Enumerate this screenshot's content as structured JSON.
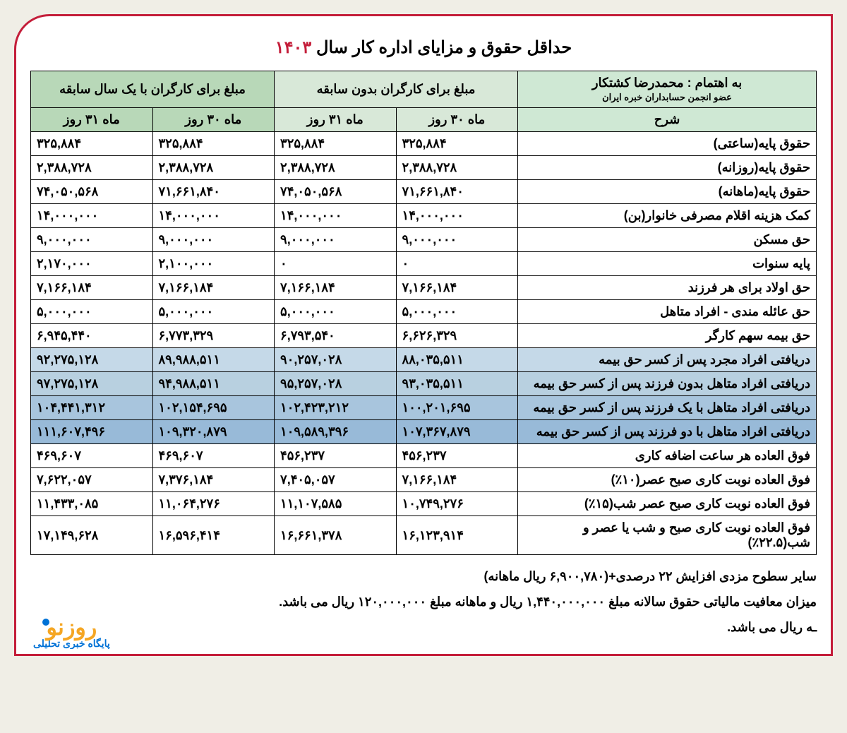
{
  "title_main": "حداقل حقوق و مزایای اداره کار سال ",
  "title_year": "۱۴۰۳",
  "header": {
    "credit_line1": "به اهتمام : محمدرضا کشتکار",
    "credit_line2": "عضو انجمن حسابداران خبره ایران",
    "group_noexp": "مبلغ برای کارگران بدون سابقه",
    "group_1yr": "مبلغ برای کارگران با یک سال سابقه",
    "col_desc": "شرح",
    "col_30": "ماه ۳۰ روز",
    "col_31": "ماه ۳۱ روز"
  },
  "rows": [
    {
      "desc": "حقوق پایه(ساعتی)",
      "a30": "۳۲۵,۸۸۴",
      "a31": "۳۲۵,۸۸۴",
      "b30": "۳۲۵,۸۸۴",
      "b31": "۳۲۵,۸۸۴",
      "cls": ""
    },
    {
      "desc": "حقوق پایه(روزانه)",
      "a30": "۲,۳۸۸,۷۲۸",
      "a31": "۲,۳۸۸,۷۲۸",
      "b30": "۲,۳۸۸,۷۲۸",
      "b31": "۲,۳۸۸,۷۲۸",
      "cls": ""
    },
    {
      "desc": "حقوق پایه(ماهانه)",
      "a30": "۷۱,۶۶۱,۸۴۰",
      "a31": "۷۴,۰۵۰,۵۶۸",
      "b30": "۷۱,۶۶۱,۸۴۰",
      "b31": "۷۴,۰۵۰,۵۶۸",
      "cls": ""
    },
    {
      "desc": "کمک هزینه اقلام مصرفی خانوار(بن)",
      "a30": "۱۴,۰۰۰,۰۰۰",
      "a31": "۱۴,۰۰۰,۰۰۰",
      "b30": "۱۴,۰۰۰,۰۰۰",
      "b31": "۱۴,۰۰۰,۰۰۰",
      "cls": ""
    },
    {
      "desc": "حق مسکن",
      "a30": "۹,۰۰۰,۰۰۰",
      "a31": "۹,۰۰۰,۰۰۰",
      "b30": "۹,۰۰۰,۰۰۰",
      "b31": "۹,۰۰۰,۰۰۰",
      "cls": ""
    },
    {
      "desc": "پایه سنوات",
      "a30": "۰",
      "a31": "۰",
      "b30": "۲,۱۰۰,۰۰۰",
      "b31": "۲,۱۷۰,۰۰۰",
      "cls": ""
    },
    {
      "desc": "حق اولاد برای هر فرزند",
      "a30": "۷,۱۶۶,۱۸۴",
      "a31": "۷,۱۶۶,۱۸۴",
      "b30": "۷,۱۶۶,۱۸۴",
      "b31": "۷,۱۶۶,۱۸۴",
      "cls": ""
    },
    {
      "desc": "حق عائله مندی - افراد متاهل",
      "a30": "۵,۰۰۰,۰۰۰",
      "a31": "۵,۰۰۰,۰۰۰",
      "b30": "۵,۰۰۰,۰۰۰",
      "b31": "۵,۰۰۰,۰۰۰",
      "cls": ""
    },
    {
      "desc": "حق بیمه سهم کارگر",
      "a30": "۶,۶۲۶,۳۲۹",
      "a31": "۶,۷۹۳,۵۴۰",
      "b30": "۶,۷۷۳,۳۲۹",
      "b31": "۶,۹۴۵,۴۴۰",
      "cls": ""
    },
    {
      "desc": "دریافتی افراد مجرد پس از کسر حق بیمه",
      "a30": "۸۸,۰۳۵,۵۱۱",
      "a31": "۹۰,۲۵۷,۰۲۸",
      "b30": "۸۹,۹۸۸,۵۱۱",
      "b31": "۹۲,۲۷۵,۱۲۸",
      "cls": "row-blue1"
    },
    {
      "desc": "دریافتی افراد متاهل بدون فرزند پس از کسر حق بیمه",
      "a30": "۹۳,۰۳۵,۵۱۱",
      "a31": "۹۵,۲۵۷,۰۲۸",
      "b30": "۹۴,۹۸۸,۵۱۱",
      "b31": "۹۷,۲۷۵,۱۲۸",
      "cls": "row-blue2"
    },
    {
      "desc": "دریافتی افراد متاهل با یک فرزند پس از کسر حق بیمه",
      "a30": "۱۰۰,۲۰۱,۶۹۵",
      "a31": "۱۰۲,۴۲۳,۲۱۲",
      "b30": "۱۰۲,۱۵۴,۶۹۵",
      "b31": "۱۰۴,۴۴۱,۳۱۲",
      "cls": "row-blue3"
    },
    {
      "desc": "دریافتی افراد متاهل با دو فرزند پس از کسر حق بیمه",
      "a30": "۱۰۷,۳۶۷,۸۷۹",
      "a31": "۱۰۹,۵۸۹,۳۹۶",
      "b30": "۱۰۹,۳۲۰,۸۷۹",
      "b31": "۱۱۱,۶۰۷,۴۹۶",
      "cls": "row-blue4"
    },
    {
      "desc": "فوق العاده هر ساعت اضافه کاری",
      "a30": "۴۵۶,۲۳۷",
      "a31": "۴۵۶,۲۳۷",
      "b30": "۴۶۹,۶۰۷",
      "b31": "۴۶۹,۶۰۷",
      "cls": ""
    },
    {
      "desc": "فوق العاده نوبت کاری صبح عصر(۱۰٪)",
      "a30": "۷,۱۶۶,۱۸۴",
      "a31": "۷,۴۰۵,۰۵۷",
      "b30": "۷,۳۷۶,۱۸۴",
      "b31": "۷,۶۲۲,۰۵۷",
      "cls": ""
    },
    {
      "desc": "فوق العاده نوبت کاری صبح عصر شب(۱۵٪)",
      "a30": "۱۰,۷۴۹,۲۷۶",
      "a31": "۱۱,۱۰۷,۵۸۵",
      "b30": "۱۱,۰۶۴,۲۷۶",
      "b31": "۱۱,۴۳۳,۰۸۵",
      "cls": ""
    },
    {
      "desc": "فوق العاده نوبت کاری صبح و شب یا عصر و شب(۲۲.۵٪)",
      "a30": "۱۶,۱۲۳,۹۱۴",
      "a31": "۱۶,۶۶۱,۳۷۸",
      "b30": "۱۶,۵۹۶,۴۱۴",
      "b31": "۱۷,۱۴۹,۶۲۸",
      "cls": ""
    }
  ],
  "footnotes": {
    "n1": "سایر سطوح مزدی افزایش ۲۲ درصدی+(۶,۹۰۰,۷۸۰ ریال ماهانه)",
    "n2": "میزان معافیت مالیاتی حقوق سالانه مبلغ ۱,۴۴۰,۰۰۰,۰۰۰ ریال و ماهانه مبلغ ۱۲۰,۰۰۰,۰۰۰ ریال می باشد.",
    "n3": "ـه ریال می باشد."
  },
  "logo": {
    "brand": "روزنو",
    "tagline": "پایگاه خبری تحلیلی"
  },
  "colors": {
    "border": "#c41e3a",
    "head_desc_bg": "#cfe8d4",
    "head_noexp_bg": "#d8e8d8",
    "head_1yr_bg": "#b8d8b8",
    "blue_rows": [
      "#c5d9e8",
      "#b8d0e0",
      "#a8c5dd",
      "#98bad8"
    ],
    "logo_orange": "#f5a623",
    "logo_blue": "#0072d6"
  }
}
